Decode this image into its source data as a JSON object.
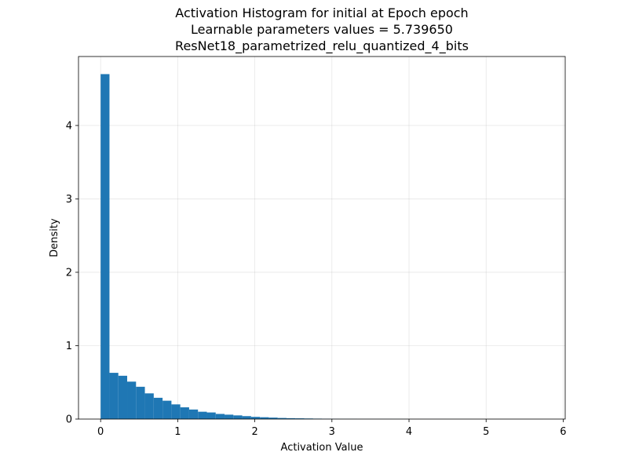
{
  "chart_data": {
    "type": "bar",
    "title_lines": [
      "Activation Histogram for initial at Epoch epoch",
      "Learnable parameters values = 5.739650",
      "ResNet18_parametrized_relu_quantized_4_bits"
    ],
    "xlabel": "Activation Value",
    "ylabel": "Density",
    "xlim": [
      -0.287,
      6.026
    ],
    "ylim": [
      0,
      4.94
    ],
    "xticks": [
      0,
      1,
      2,
      3,
      4,
      5,
      6
    ],
    "xtick_labels": [
      "0",
      "1",
      "2",
      "3",
      "4",
      "5",
      "6"
    ],
    "yticks": [
      0,
      1,
      2,
      3,
      4
    ],
    "ytick_labels": [
      "0",
      "1",
      "2",
      "3",
      "4"
    ],
    "grid": true,
    "bar_color": "#1f77b4",
    "bin_width": 0.1148,
    "bin_start": 0.0,
    "values": [
      4.7,
      0.63,
      0.59,
      0.51,
      0.44,
      0.35,
      0.29,
      0.25,
      0.2,
      0.16,
      0.13,
      0.1,
      0.09,
      0.07,
      0.06,
      0.05,
      0.04,
      0.03,
      0.025,
      0.02,
      0.015,
      0.012,
      0.01,
      0.008,
      0.006,
      0.004,
      0.003,
      0.002,
      0.002,
      0.001,
      0.001,
      0.001,
      0.001,
      0.0008,
      0.0006,
      0.0005,
      0.0004,
      0.0003,
      0.0003,
      0.0002,
      0.0002,
      0.0002,
      0.0001,
      0.0001,
      0.0001,
      0.0001,
      0.0001,
      0.0001,
      0.0001,
      0.0001
    ]
  }
}
